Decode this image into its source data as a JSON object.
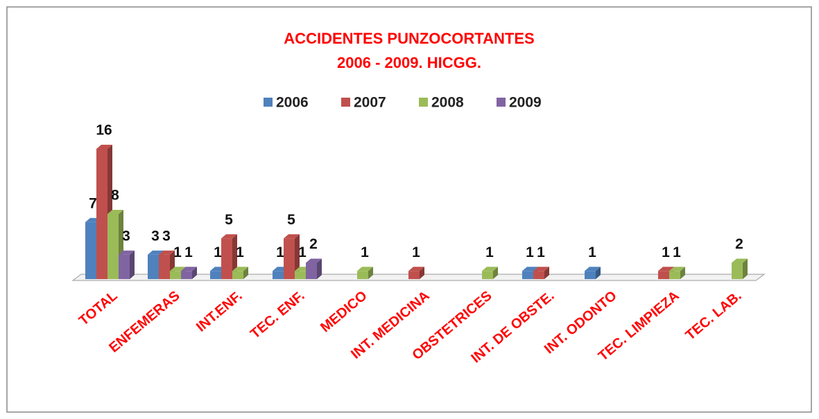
{
  "chart_data": {
    "type": "bar3d",
    "title": "ACCIDENTES PUNZOCORTANTES",
    "subtitle": "2006 - 2009. HICGG.",
    "categories": [
      "TOTAL",
      "ENFEMERAS",
      "INT.ENF.",
      "TEC. ENF.",
      "MEDICO",
      "INT. MEDICINA",
      "OBSTETRICES",
      "INT. DE OBSTE.",
      "INT. ODONTO",
      "TEC. LIMPIEZA",
      "TEC. LAB."
    ],
    "series": [
      {
        "name": "2006",
        "color": "#4f81bd",
        "values": [
          7,
          3,
          1,
          1,
          null,
          null,
          null,
          1,
          1,
          null,
          null
        ]
      },
      {
        "name": "2007",
        "color": "#c0504d",
        "values": [
          16,
          3,
          5,
          5,
          null,
          1,
          null,
          1,
          null,
          1,
          null
        ]
      },
      {
        "name": "2008",
        "color": "#9bbb59",
        "values": [
          8,
          1,
          1,
          1,
          1,
          null,
          1,
          null,
          null,
          1,
          2
        ]
      },
      {
        "name": "2009",
        "color": "#8064a2",
        "values": [
          3,
          1,
          null,
          2,
          null,
          null,
          null,
          null,
          null,
          null,
          null
        ]
      }
    ],
    "legend": "top"
  }
}
